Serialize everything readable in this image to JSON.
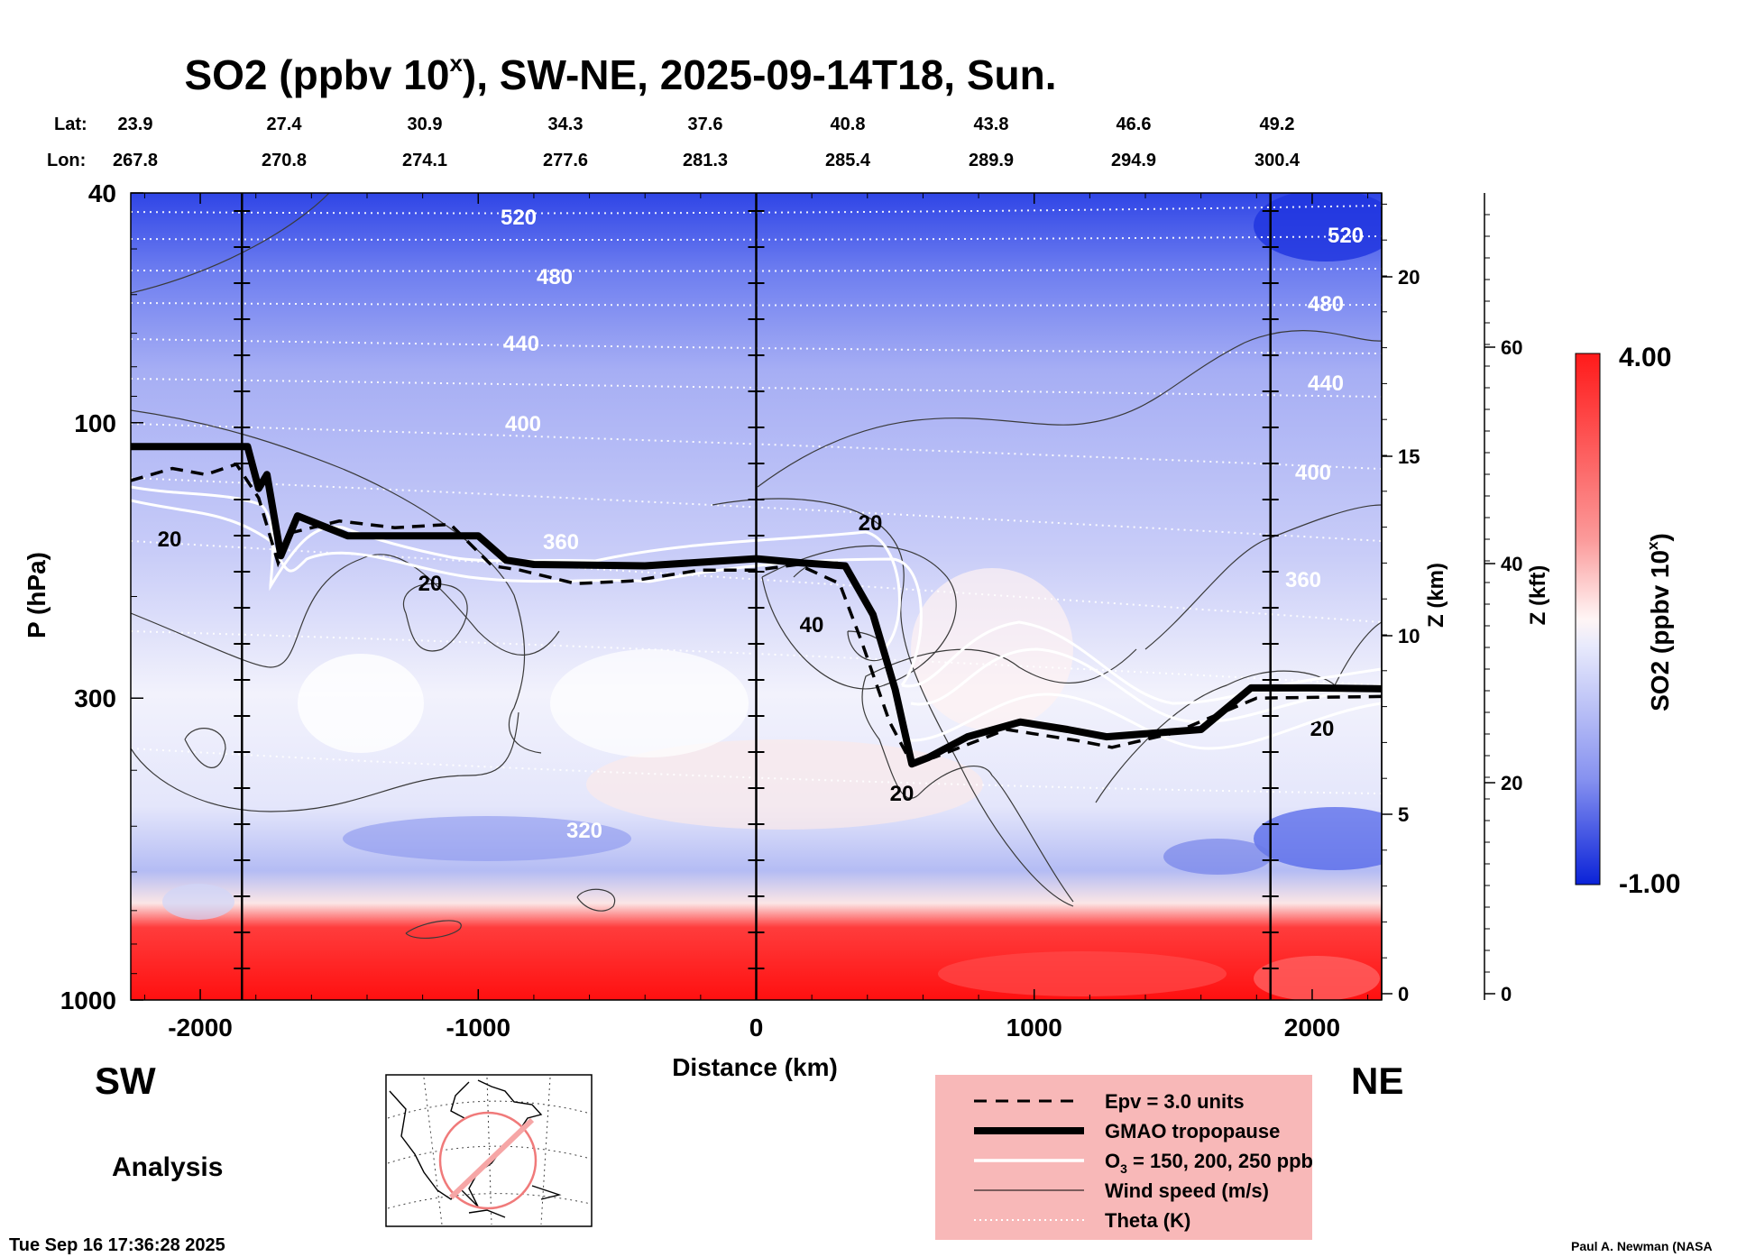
{
  "chart_data": {
    "type": "heatmap",
    "title": {
      "main": "SO2 (ppbv 10",
      "exponent": "x",
      "rest": "), SW-NE, 2025-09-14T18, Sun."
    },
    "xlabel": "Distance (km)",
    "ylabel": "P (hPa)",
    "xlim": [
      -2250,
      2250
    ],
    "ylim": [
      1000,
      40
    ],
    "x_ticks": [
      "-2000",
      "-1000",
      "0",
      "1000",
      "2000"
    ],
    "x_tick_values": [
      -2000,
      -1000,
      0,
      1000,
      2000
    ],
    "y_ticks": [
      "40",
      "100",
      "300",
      "1000"
    ],
    "y_tick_values": [
      40,
      100,
      300,
      1000
    ],
    "lat_label": "Lat:",
    "lon_label": "Lon:",
    "lat": [
      "23.9",
      "27.4",
      "30.9",
      "34.3",
      "37.6",
      "40.8",
      "43.8",
      "46.6",
      "49.2"
    ],
    "lon": [
      "267.8",
      "270.8",
      "274.1",
      "277.6",
      "281.3",
      "285.4",
      "289.9",
      "294.9",
      "300.4"
    ],
    "z_km_label": "Z (km)",
    "z_km_ticks": [
      "0",
      "5",
      "10",
      "15",
      "20"
    ],
    "z_kft_label": "Z (kft)",
    "z_kft_ticks": [
      "0",
      "20",
      "40",
      "60"
    ],
    "colorbar": {
      "label_main": "SO2 (ppbv 10",
      "label_exp": "x",
      "label_end": ")",
      "max": "4.00",
      "min": "-1.00",
      "colors": {
        "high": "#ff1a1a",
        "mid": "#ffffff",
        "low": "#0a22d8"
      }
    },
    "theta_levels": [
      "520",
      "480",
      "440",
      "400",
      "360",
      "320",
      "520",
      "480",
      "440",
      "400",
      "360"
    ],
    "wind_labels": [
      "20",
      "20",
      "20",
      "40",
      "20",
      "20"
    ],
    "vertical_markers_km": [
      -1850,
      0,
      1850
    ],
    "tropopause_path": [
      [
        -2250,
        110
      ],
      [
        -1830,
        110
      ],
      [
        -1790,
        130
      ],
      [
        -1760,
        123
      ],
      [
        -1710,
        170
      ],
      [
        -1650,
        145
      ],
      [
        -1470,
        157
      ],
      [
        -1360,
        157
      ],
      [
        -1000,
        157
      ],
      [
        -900,
        173
      ],
      [
        -800,
        176
      ],
      [
        -400,
        177
      ],
      [
        0,
        172
      ],
      [
        170,
        175
      ],
      [
        320,
        177
      ],
      [
        420,
        215
      ],
      [
        500,
        290
      ],
      [
        560,
        390
      ],
      [
        620,
        380
      ],
      [
        760,
        350
      ],
      [
        950,
        330
      ],
      [
        1120,
        340
      ],
      [
        1260,
        350
      ],
      [
        1600,
        340
      ],
      [
        1780,
        288
      ],
      [
        2000,
        288
      ],
      [
        2250,
        289
      ]
    ],
    "epv_path": [
      [
        -2250,
        126
      ],
      [
        -2100,
        120
      ],
      [
        -1980,
        123
      ],
      [
        -1870,
        118
      ],
      [
        -1790,
        135
      ],
      [
        -1720,
        175
      ],
      [
        -1670,
        155
      ],
      [
        -1500,
        148
      ],
      [
        -1300,
        152
      ],
      [
        -1100,
        150
      ],
      [
        -950,
        177
      ],
      [
        -850,
        180
      ],
      [
        -650,
        190
      ],
      [
        -450,
        188
      ],
      [
        -200,
        180
      ],
      [
        0,
        180
      ],
      [
        150,
        176
      ],
      [
        300,
        190
      ],
      [
        380,
        240
      ],
      [
        480,
        330
      ],
      [
        560,
        390
      ],
      [
        640,
        380
      ],
      [
        900,
        340
      ],
      [
        1150,
        355
      ],
      [
        1280,
        365
      ],
      [
        1500,
        345
      ],
      [
        1800,
        300
      ],
      [
        2250,
        298
      ]
    ],
    "legend": [
      {
        "label": "Epv = 3.0 units",
        "style": "dashed"
      },
      {
        "label": "GMAO tropopause",
        "style": "thick"
      },
      {
        "label_pre": "O",
        "label_sub": "3",
        "label_post": " = 150, 200, 250 ppb",
        "style": "white"
      },
      {
        "label": "Wind speed (m/s)",
        "style": "thin"
      },
      {
        "label": "Theta (K)",
        "style": "dotted"
      }
    ],
    "legend_bg": "#f8b8b8"
  },
  "corner_labels": {
    "left": "SW",
    "right": "NE"
  },
  "analysis_label": "Analysis",
  "timestamp": "Tue Sep 16 17:36:28 2025",
  "credit": "Paul A. Newman (NASA"
}
